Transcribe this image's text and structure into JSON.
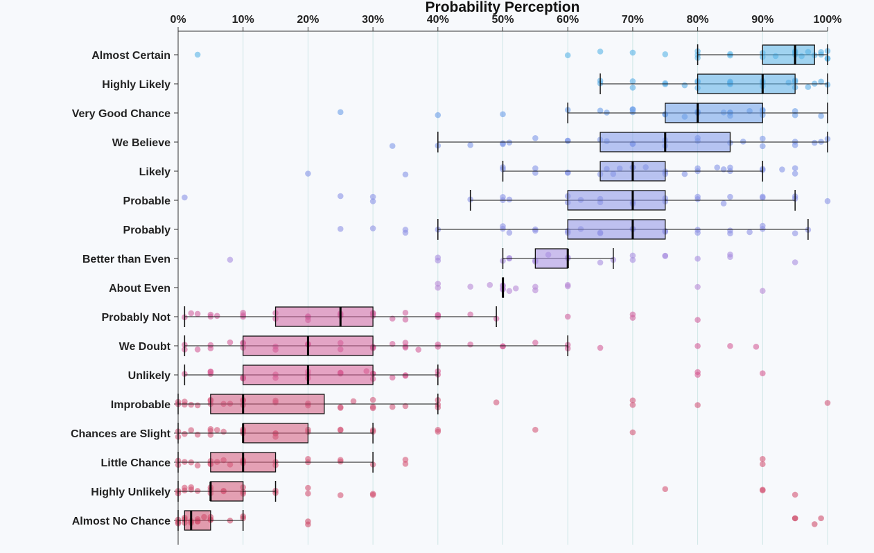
{
  "chart_data": {
    "type": "boxplot",
    "title": "Probability Perception",
    "xlabel": "",
    "ylabel": "",
    "xlim": [
      0,
      100
    ],
    "x_ticks": [
      "0%",
      "10%",
      "20%",
      "30%",
      "40%",
      "50%",
      "60%",
      "70%",
      "80%",
      "90%",
      "100%"
    ],
    "grid": true,
    "categories": [
      {
        "label": "Almost Certain",
        "color": "#5ab4e6",
        "box": {
          "min": 80,
          "q1": 90,
          "median": 95,
          "q3": 98,
          "max": 100
        },
        "points": [
          3,
          60,
          65,
          70,
          75,
          80,
          80,
          80,
          85,
          85,
          90,
          90,
          92,
          95,
          95,
          95,
          96,
          97,
          98,
          99,
          99,
          100,
          100,
          100
        ]
      },
      {
        "label": "Highly Likely",
        "color": "#5aaee6",
        "box": {
          "min": 65,
          "q1": 80,
          "median": 90,
          "q3": 95,
          "max": 100
        },
        "points": [
          65,
          65,
          70,
          70,
          75,
          75,
          78,
          80,
          80,
          80,
          85,
          85,
          85,
          85,
          90,
          90,
          90,
          94,
          95,
          95,
          95,
          97,
          98,
          99,
          100
        ]
      },
      {
        "label": "Very Good Chance",
        "color": "#6c9ee8",
        "box": {
          "min": 60,
          "q1": 75,
          "median": 80,
          "q3": 90,
          "max": 100
        },
        "points": [
          25,
          40,
          50,
          60,
          65,
          66,
          70,
          70,
          70,
          75,
          75,
          78,
          80,
          80,
          80,
          84,
          85,
          85,
          85,
          88,
          90,
          90,
          90,
          95,
          95,
          99
        ]
      },
      {
        "label": "We Believe",
        "color": "#7f98e8",
        "box": {
          "min": 40,
          "q1": 65,
          "median": 75,
          "q3": 85,
          "max": 100
        },
        "points": [
          33,
          40,
          45,
          50,
          50,
          51,
          55,
          60,
          60,
          65,
          66,
          70,
          70,
          75,
          75,
          80,
          80,
          85,
          87,
          90,
          90,
          95,
          95,
          98,
          99,
          100
        ]
      },
      {
        "label": "Likely",
        "color": "#8595e6",
        "box": {
          "min": 50,
          "q1": 65,
          "median": 70,
          "q3": 75,
          "max": 90
        },
        "points": [
          20,
          35,
          50,
          50,
          55,
          55,
          60,
          60,
          65,
          66,
          67,
          68,
          70,
          70,
          72,
          75,
          75,
          78,
          80,
          80,
          83,
          84,
          85,
          85,
          90,
          90,
          93,
          95,
          95
        ]
      },
      {
        "label": "Probable",
        "color": "#8b93e6",
        "box": {
          "min": 45,
          "q1": 60,
          "median": 70,
          "q3": 75,
          "max": 95
        },
        "points": [
          1,
          25,
          30,
          30,
          45,
          50,
          50,
          51,
          60,
          60,
          62,
          65,
          65,
          70,
          70,
          75,
          75,
          80,
          80,
          84,
          85,
          90,
          90,
          95,
          95,
          100
        ]
      },
      {
        "label": "Probably",
        "color": "#8f92e4",
        "box": {
          "min": 40,
          "q1": 60,
          "median": 70,
          "q3": 75,
          "max": 97
        },
        "points": [
          25,
          30,
          35,
          35,
          40,
          50,
          50,
          51,
          55,
          55,
          60,
          60,
          62,
          65,
          65,
          70,
          70,
          75,
          75,
          80,
          80,
          85,
          85,
          88,
          90,
          90,
          95,
          97
        ]
      },
      {
        "label": "Better than Even",
        "color": "#a88ee0",
        "box": {
          "min": 50,
          "q1": 55,
          "median": 60,
          "q3": 60,
          "max": 67
        },
        "points": [
          8,
          40,
          40,
          50,
          51,
          51,
          55,
          55,
          57,
          60,
          60,
          65,
          67,
          70,
          70,
          75,
          75,
          80,
          85,
          85,
          95
        ]
      },
      {
        "label": "About Even",
        "color": "#b789d6",
        "box": {
          "min": 50,
          "q1": 50,
          "median": 50,
          "q3": 50,
          "max": 50
        },
        "points": [
          40,
          40,
          45,
          48,
          50,
          50,
          50,
          50,
          51,
          52,
          55,
          55,
          60,
          60,
          80,
          90
        ]
      },
      {
        "label": "Probably Not",
        "color": "#d0629e",
        "box": {
          "min": 1,
          "q1": 15,
          "median": 25,
          "q3": 30,
          "max": 49
        },
        "points": [
          1,
          2,
          3,
          5,
          5,
          6,
          10,
          10,
          10,
          15,
          15,
          20,
          20,
          20,
          25,
          25,
          25,
          30,
          30,
          30,
          33,
          35,
          35,
          40,
          40,
          40,
          45,
          49,
          60,
          70,
          70,
          80
        ]
      },
      {
        "label": "We Doubt",
        "color": "#d45e98",
        "box": {
          "min": 1,
          "q1": 10,
          "median": 20,
          "q3": 30,
          "max": 60
        },
        "points": [
          1,
          1,
          3,
          5,
          5,
          8,
          10,
          10,
          10,
          15,
          15,
          20,
          20,
          20,
          25,
          25,
          30,
          30,
          30,
          33,
          35,
          35,
          35,
          37,
          40,
          40,
          45,
          50,
          50,
          55,
          60,
          60,
          65,
          80,
          85,
          89
        ]
      },
      {
        "label": "Unlikely",
        "color": "#d75c93",
        "box": {
          "min": 1,
          "q1": 10,
          "median": 20,
          "q3": 30,
          "max": 40
        },
        "points": [
          1,
          5,
          5,
          5,
          10,
          10,
          10,
          15,
          15,
          20,
          20,
          20,
          25,
          25,
          25,
          29,
          30,
          30,
          30,
          33,
          35,
          35,
          40,
          40,
          80,
          80,
          90
        ]
      },
      {
        "label": "Improbable",
        "color": "#d2587c",
        "box": {
          "min": 0,
          "q1": 5,
          "median": 10,
          "q3": 22.5,
          "max": 40
        },
        "points": [
          0,
          0,
          1,
          1,
          2,
          3,
          5,
          5,
          5,
          7,
          8,
          10,
          10,
          10,
          15,
          15,
          20,
          20,
          25,
          25,
          27,
          30,
          30,
          30,
          33,
          35,
          40,
          40,
          40,
          49,
          70,
          70,
          80,
          100
        ]
      },
      {
        "label": "Chances are Slight",
        "color": "#d45a7a",
        "box": {
          "min": 0,
          "q1": 10,
          "median": 10,
          "q3": 20,
          "max": 30
        },
        "points": [
          0,
          0,
          1,
          2,
          3,
          5,
          5,
          5,
          6,
          7,
          10,
          10,
          10,
          15,
          15,
          15,
          20,
          20,
          25,
          25,
          30,
          30,
          40,
          40,
          55,
          70
        ]
      },
      {
        "label": "Little Chance",
        "color": "#d55878",
        "box": {
          "min": 0,
          "q1": 5,
          "median": 10,
          "q3": 15,
          "max": 30
        },
        "points": [
          0,
          0,
          1,
          2,
          3,
          5,
          5,
          5,
          6,
          7,
          8,
          10,
          10,
          10,
          15,
          15,
          20,
          20,
          25,
          25,
          30,
          35,
          35,
          90,
          90
        ]
      },
      {
        "label": "Highly Unlikely",
        "color": "#d35574",
        "box": {
          "min": 0,
          "q1": 5,
          "median": 5,
          "q3": 10,
          "max": 15
        },
        "points": [
          0,
          0,
          1,
          1,
          2,
          2,
          3,
          5,
          5,
          5,
          7,
          7,
          10,
          10,
          10,
          15,
          15,
          20,
          20,
          25,
          30,
          30,
          75,
          90,
          90,
          95
        ]
      },
      {
        "label": "Almost No Chance",
        "color": "#cf4f6c",
        "box": {
          "min": 0,
          "q1": 1,
          "median": 2,
          "q3": 5,
          "max": 10
        },
        "points": [
          0,
          0,
          0,
          1,
          1,
          1,
          2,
          2,
          3,
          3,
          3,
          4,
          5,
          5,
          5,
          8,
          10,
          10,
          20,
          20,
          95,
          95,
          98,
          99
        ]
      }
    ]
  }
}
